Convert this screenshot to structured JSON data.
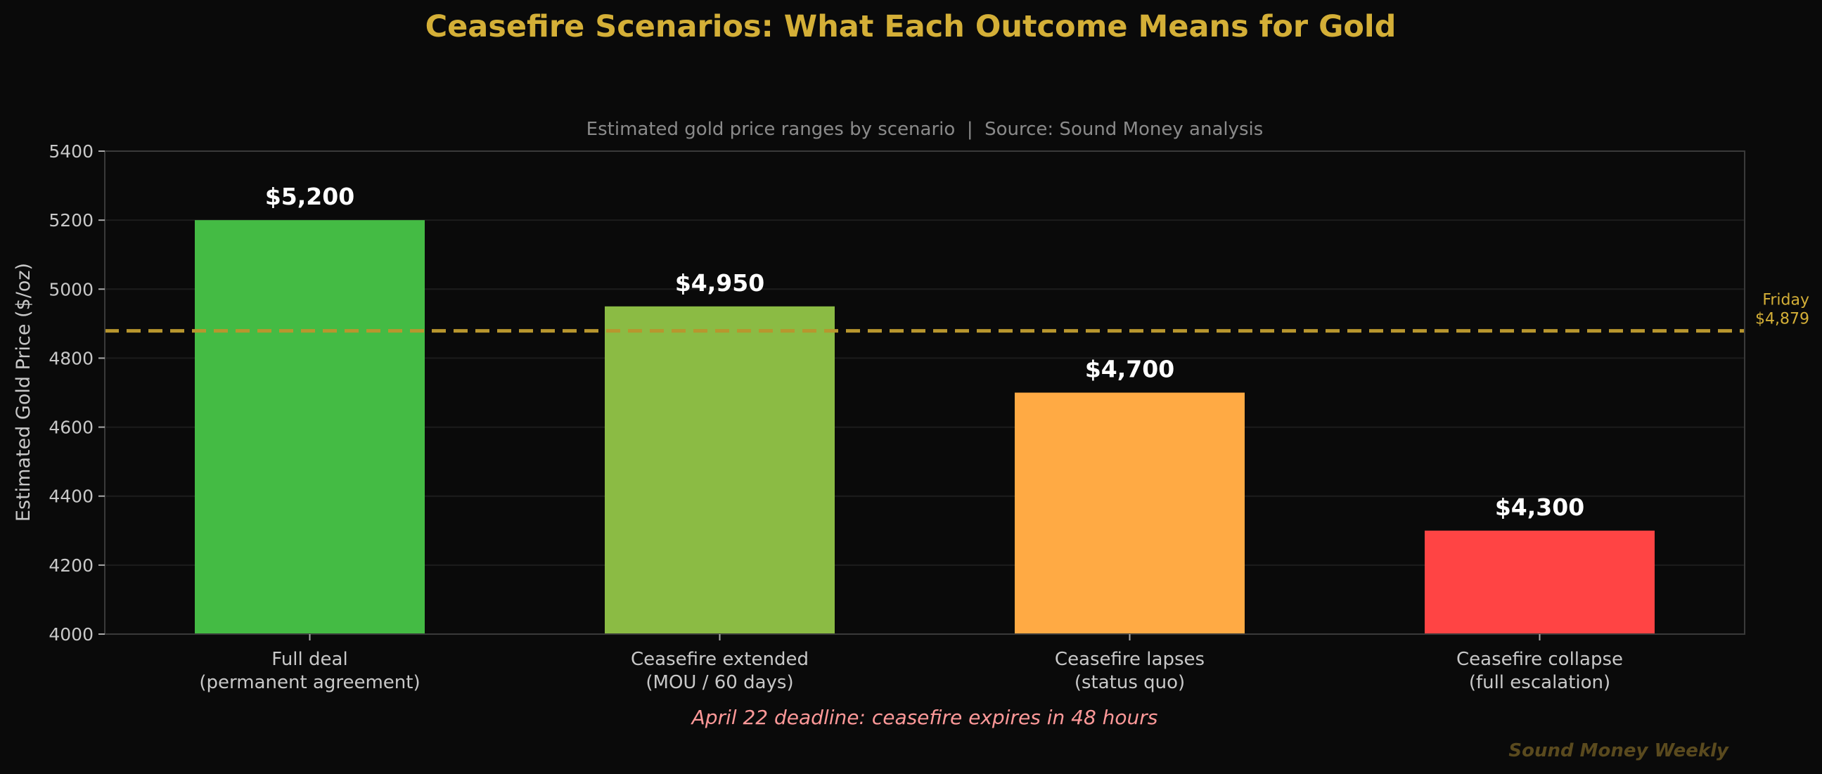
{
  "chart_data": {
    "type": "bar",
    "title": "Ceasefire Scenarios: What Each Outcome Means for Gold",
    "subtitle": "Estimated gold price ranges by scenario  |  Source: Sound Money analysis",
    "xlabel": "",
    "ylabel": "Estimated Gold Price ($/oz)",
    "ylim": [
      4000,
      5400
    ],
    "yticks": [
      4000,
      4200,
      4400,
      4600,
      4800,
      5000,
      5200,
      5400
    ],
    "grid": true,
    "categories": [
      [
        "Full deal",
        "(permanent agreement)"
      ],
      [
        "Ceasefire extended",
        "(MOU / 60 days)"
      ],
      [
        "Ceasefire lapses",
        "(status quo)"
      ],
      [
        "Ceasefire collapse",
        "(full escalation)"
      ]
    ],
    "values": [
      5200,
      4950,
      4700,
      4300
    ],
    "data_labels": [
      "$5,200",
      "$4,950",
      "$4,700",
      "$4,300"
    ],
    "bar_colors": [
      "#44bb44",
      "#8bbb44",
      "#ffaa44",
      "#ff4444"
    ],
    "reference_line": {
      "value": 4879,
      "label_lines": [
        "Friday",
        "$4,879"
      ],
      "color": "#b8962e",
      "style": "dashed"
    },
    "annotation": "April 22 deadline: ceasefire expires in 48 hours",
    "watermark": "Sound Money Weekly",
    "colors": {
      "background": "#0a0a0a",
      "title": "#d4af37",
      "annotation": "#ff9999",
      "watermark": "#5a4a1e"
    }
  }
}
